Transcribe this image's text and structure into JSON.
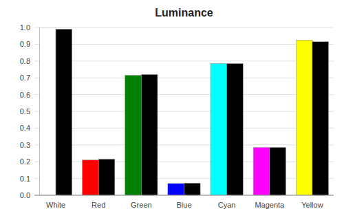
{
  "chart_data": {
    "type": "bar",
    "title": "Luminance",
    "categories": [
      "White",
      "Red",
      "Green",
      "Blue",
      "Cyan",
      "Magenta",
      "Yellow"
    ],
    "series": [
      {
        "colors": [
          "#ffffff",
          "#ff0000",
          "#008000",
          "#0000ff",
          "#00ffff",
          "#ff00ff",
          "#ffff00"
        ],
        "values": [
          1.0,
          0.21,
          0.715,
          0.07,
          0.785,
          0.285,
          0.925
        ]
      },
      {
        "color": "#000000",
        "values": [
          0.99,
          0.215,
          0.72,
          0.072,
          0.785,
          0.285,
          0.915
        ]
      }
    ],
    "ylim": [
      0.0,
      1.0
    ],
    "yticks": [
      {
        "value": 0,
        "label": "0.0"
      },
      0.1,
      0.2,
      0.3,
      0.4,
      0.5,
      0.6,
      0.7,
      0.8,
      0.9,
      {
        "value": 1,
        "label": "1.0"
      }
    ],
    "grid": true
  }
}
